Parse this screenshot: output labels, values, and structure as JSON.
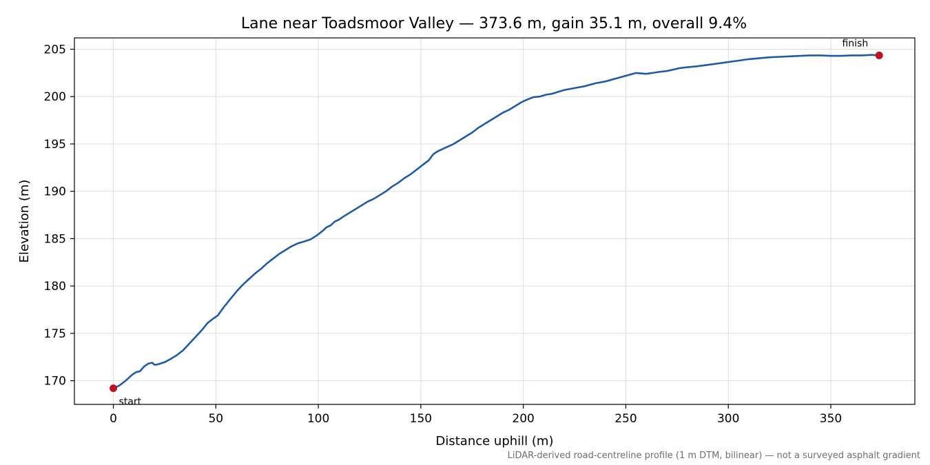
{
  "chart_data": {
    "type": "line",
    "title": "Lane near Toadsmoor Valley — 373.6 m, gain 35.1 m, overall 9.4%",
    "xlabel": "Distance uphill (m)",
    "ylabel": "Elevation (m)",
    "xlim": [
      -19,
      391
    ],
    "ylim": [
      167.5,
      206.2
    ],
    "xticks": [
      0,
      50,
      100,
      150,
      200,
      250,
      300,
      350
    ],
    "yticks": [
      170,
      175,
      180,
      185,
      190,
      195,
      200,
      205
    ],
    "grid": true,
    "series": [
      {
        "color": "#1f5aa6",
        "x": [
          0,
          3,
          6,
          9,
          11,
          13,
          15,
          17,
          19,
          20,
          21,
          22,
          25,
          28,
          31,
          34,
          37,
          40,
          43,
          46,
          49,
          51,
          54,
          57,
          60,
          63,
          66,
          69,
          72,
          75,
          78,
          81,
          84,
          87,
          90,
          93,
          96,
          99,
          102,
          104,
          106,
          108,
          110,
          112,
          115,
          118,
          121,
          124,
          127,
          130,
          133,
          136,
          139,
          142,
          145,
          148,
          151,
          154,
          156,
          158,
          160,
          163,
          166,
          169,
          172,
          175,
          178,
          181,
          184,
          187,
          190,
          193,
          196,
          199,
          202,
          205,
          208,
          211,
          214,
          217,
          220,
          225,
          230,
          235,
          240,
          245,
          250,
          255,
          260,
          263,
          266,
          270,
          273,
          276,
          280,
          285,
          290,
          295,
          300,
          305,
          310,
          315,
          320,
          325,
          330,
          335,
          340,
          345,
          350,
          355,
          360,
          365,
          370,
          373.6
        ],
        "values": [
          169.2,
          169.5,
          170.0,
          170.6,
          170.9,
          171.0,
          171.5,
          171.8,
          171.9,
          171.7,
          171.7,
          171.75,
          171.95,
          172.3,
          172.7,
          173.2,
          173.9,
          174.6,
          175.3,
          176.1,
          176.6,
          176.9,
          177.8,
          178.6,
          179.4,
          180.1,
          180.7,
          181.3,
          181.8,
          182.4,
          182.9,
          183.4,
          183.8,
          184.2,
          184.5,
          184.7,
          184.9,
          185.3,
          185.8,
          186.2,
          186.4,
          186.8,
          187.0,
          187.3,
          187.7,
          188.1,
          188.5,
          188.9,
          189.2,
          189.6,
          190.0,
          190.5,
          190.9,
          191.4,
          191.8,
          192.3,
          192.8,
          193.3,
          193.9,
          194.2,
          194.4,
          194.7,
          195.0,
          195.4,
          195.8,
          196.2,
          196.7,
          197.1,
          197.5,
          197.9,
          198.3,
          198.6,
          199.0,
          199.4,
          199.7,
          199.95,
          200.0,
          200.2,
          200.3,
          200.5,
          200.7,
          200.9,
          201.1,
          201.4,
          201.6,
          201.9,
          202.2,
          202.5,
          202.4,
          202.5,
          202.6,
          202.7,
          202.85,
          203.0,
          203.1,
          203.2,
          203.35,
          203.5,
          203.65,
          203.8,
          203.95,
          204.05,
          204.15,
          204.2,
          204.25,
          204.3,
          204.35,
          204.35,
          204.3,
          204.3,
          204.35,
          204.35,
          204.4,
          204.35
        ]
      }
    ],
    "markers": [
      {
        "x": 0,
        "y": 169.2,
        "label": "start",
        "color": "#c1121f"
      },
      {
        "x": 373.6,
        "y": 204.35,
        "label": "finish",
        "color": "#c1121f"
      }
    ],
    "footnote": "LiDAR-derived road-centreline profile (1 m DTM, bilinear) — not a surveyed asphalt gradient"
  }
}
